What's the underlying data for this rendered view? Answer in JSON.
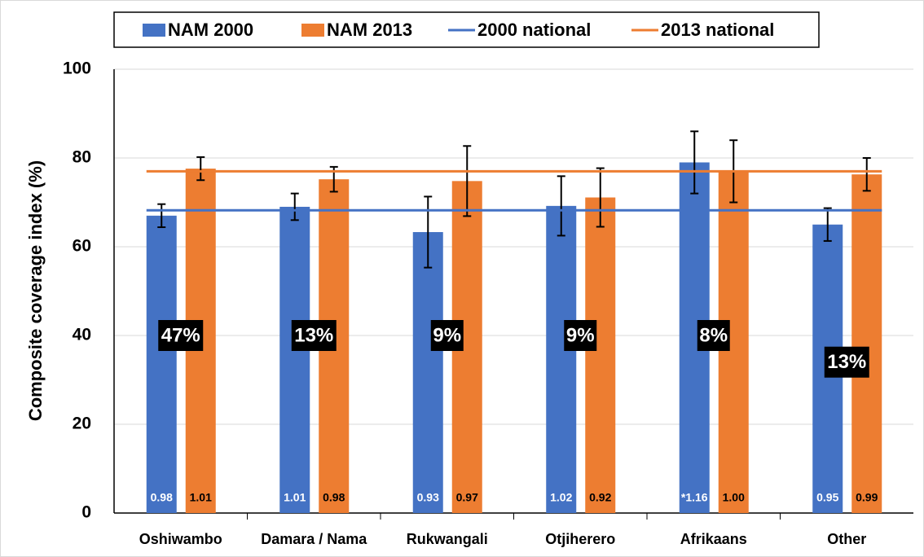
{
  "chart_data": {
    "type": "bar",
    "y_axis_label": "Composite coverage index (%)",
    "categories": [
      "Oshiwambo",
      "Damara / Nama",
      "Rukwangali",
      "Otjiherero",
      "Afrikaans",
      "Other"
    ],
    "series": [
      {
        "name": "NAM 2000",
        "color": "#4472c4",
        "values": [
          67,
          69,
          63.3,
          69.2,
          79,
          65
        ],
        "errors": [
          2.6,
          3,
          8,
          6.7,
          7,
          3.7
        ],
        "bottom_labels": [
          "0.98",
          "1.01",
          "0.93",
          "1.02",
          "*1.16",
          "0.95"
        ]
      },
      {
        "name": "NAM 2013",
        "color": "#ed7d31",
        "values": [
          77.6,
          75.2,
          74.8,
          71.1,
          77,
          76.3
        ],
        "errors": [
          2.6,
          2.8,
          7.9,
          6.6,
          7,
          3.7
        ],
        "bottom_labels": [
          "1.01",
          "0.98",
          "0.97",
          "0.92",
          "1.00",
          "0.99"
        ]
      }
    ],
    "national": [
      {
        "name": "2000 national",
        "color": "#4472c4",
        "value": 68.2
      },
      {
        "name": "2013 national",
        "color": "#ed7d31",
        "value": 77
      }
    ],
    "shares": {
      "values": [
        47,
        13,
        9,
        9,
        8,
        13
      ],
      "value_labels": [
        "47%",
        "13%",
        "9%",
        "9%",
        "8%",
        "13%"
      ]
    },
    "ylim": [
      0,
      100
    ],
    "yticks": [
      0,
      20,
      40,
      60,
      80,
      100
    ],
    "grid": true
  }
}
